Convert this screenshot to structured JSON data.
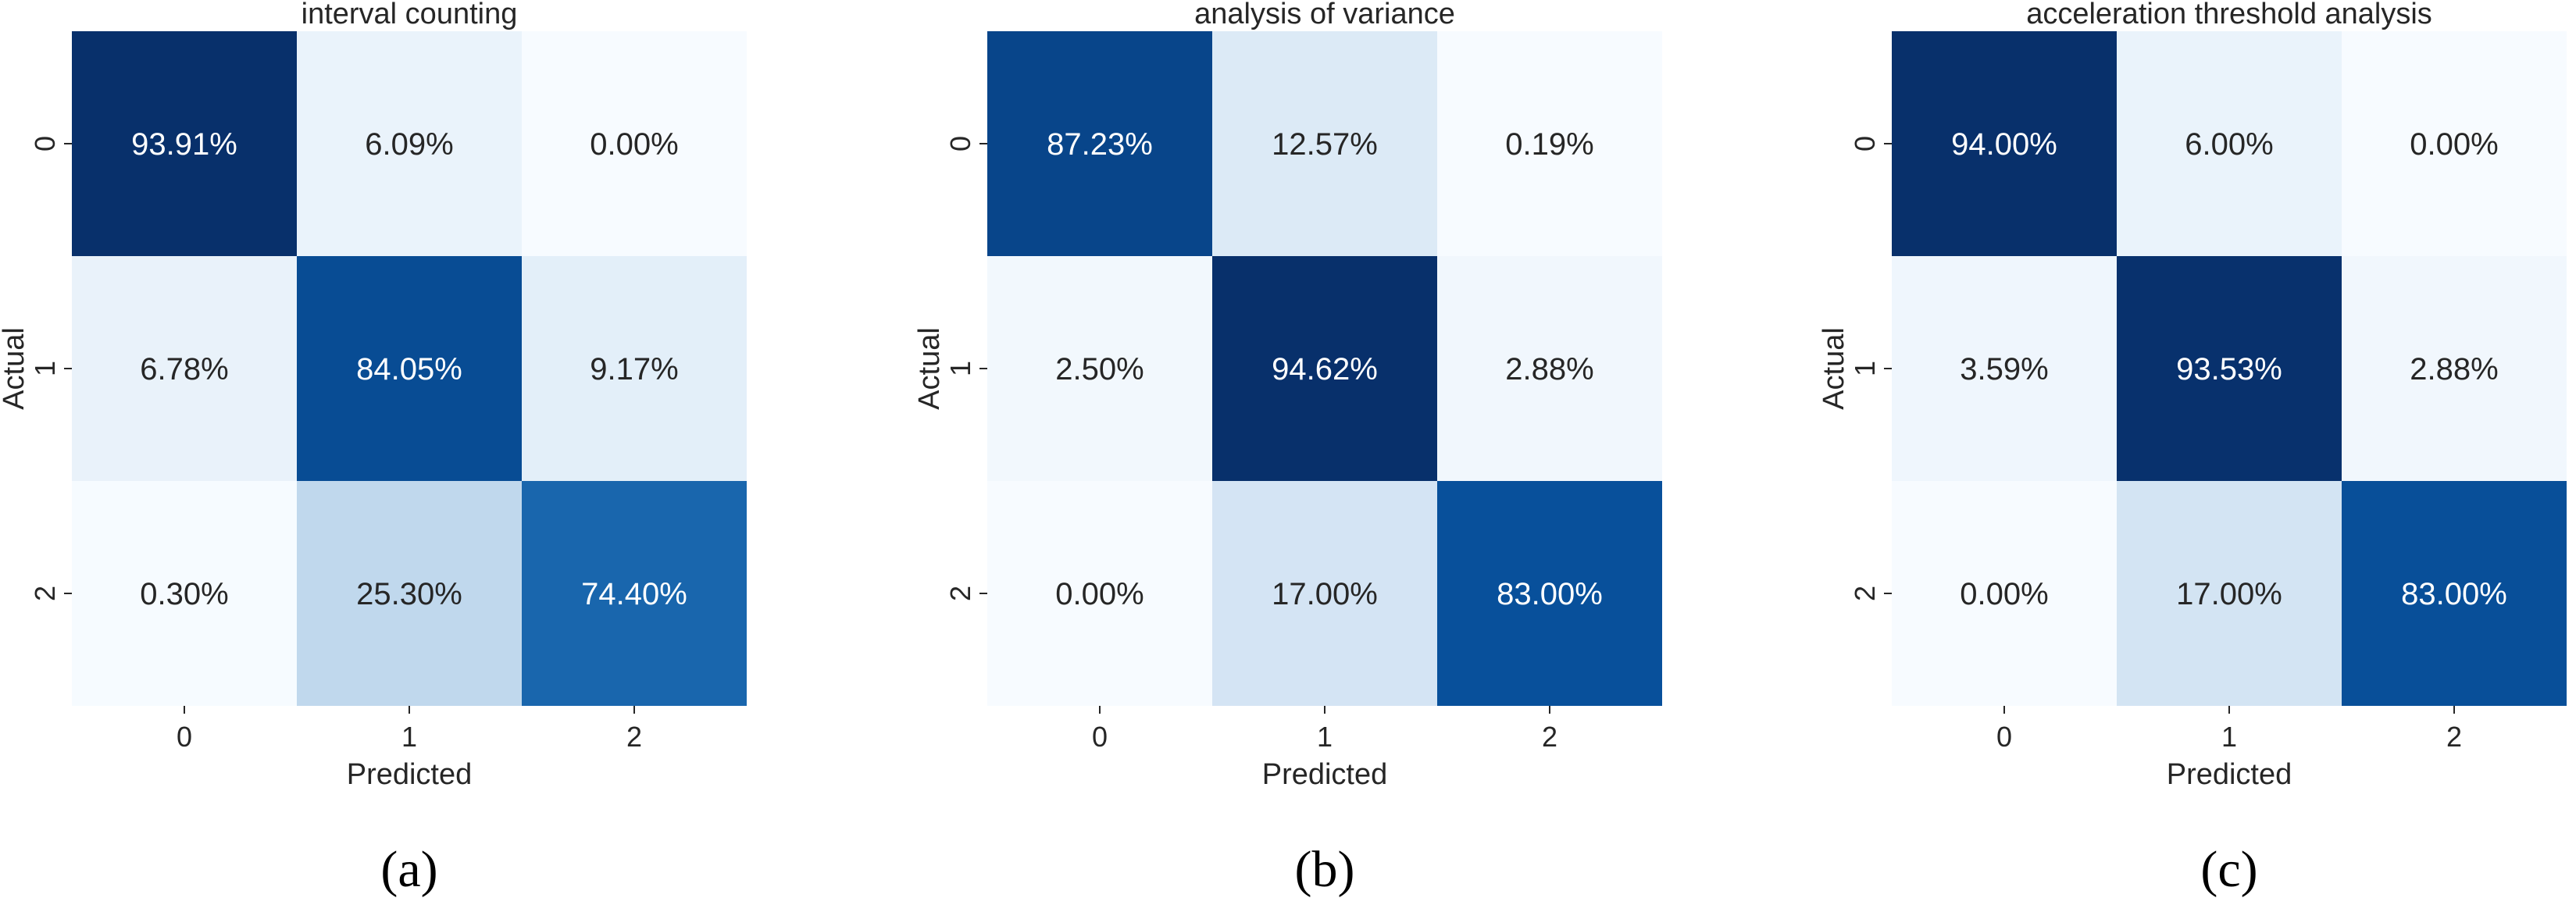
{
  "chart_data": [
    {
      "type": "heatmap",
      "title": "interval counting",
      "xlabel": "Predicted",
      "ylabel": "Actual",
      "x_categories": [
        "0",
        "1",
        "2"
      ],
      "y_categories": [
        "0",
        "1",
        "2"
      ],
      "values": [
        [
          93.91,
          6.09,
          0.0
        ],
        [
          6.78,
          84.05,
          9.17
        ],
        [
          0.3,
          25.3,
          74.4
        ]
      ],
      "cell_labels": [
        [
          "93.91%",
          "6.09%",
          "0.00%"
        ],
        [
          "6.78%",
          "84.05%",
          "9.17%"
        ],
        [
          "0.30%",
          "25.30%",
          "74.40%"
        ]
      ],
      "colormap": "Blues",
      "panel_label": "(a)"
    },
    {
      "type": "heatmap",
      "title": "analysis of variance",
      "xlabel": "Predicted",
      "ylabel": "Actual",
      "x_categories": [
        "0",
        "1",
        "2"
      ],
      "y_categories": [
        "0",
        "1",
        "2"
      ],
      "values": [
        [
          87.23,
          12.57,
          0.19
        ],
        [
          2.5,
          94.62,
          2.88
        ],
        [
          0.0,
          17.0,
          83.0
        ]
      ],
      "cell_labels": [
        [
          "87.23%",
          "12.57%",
          "0.19%"
        ],
        [
          "2.50%",
          "94.62%",
          "2.88%"
        ],
        [
          "0.00%",
          "17.00%",
          "83.00%"
        ]
      ],
      "colormap": "Blues",
      "panel_label": "(b)"
    },
    {
      "type": "heatmap",
      "title": "acceleration threshold analysis",
      "xlabel": "Predicted",
      "ylabel": "Actual",
      "x_categories": [
        "0",
        "1",
        "2"
      ],
      "y_categories": [
        "0",
        "1",
        "2"
      ],
      "values": [
        [
          94.0,
          6.0,
          0.0
        ],
        [
          3.59,
          93.53,
          2.88
        ],
        [
          0.0,
          17.0,
          83.0
        ]
      ],
      "cell_labels": [
        [
          "94.00%",
          "6.00%",
          "0.00%"
        ],
        [
          "3.59%",
          "93.53%",
          "2.88%"
        ],
        [
          "0.00%",
          "17.00%",
          "83.00%"
        ]
      ],
      "colormap": "Blues",
      "panel_label": "(c)"
    }
  ]
}
